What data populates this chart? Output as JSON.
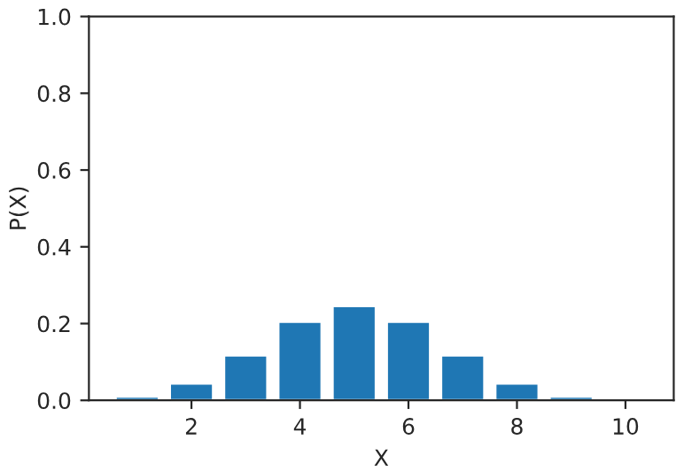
{
  "chart_data": {
    "type": "bar",
    "xlabel": "X",
    "ylabel": "P(X)",
    "x": [
      1,
      2,
      3,
      4,
      5,
      6,
      7,
      8,
      9
    ],
    "values": [
      0.01,
      0.044,
      0.117,
      0.205,
      0.246,
      0.205,
      0.117,
      0.044,
      0.01
    ],
    "color": "#1f77b4",
    "xlim": [
      0.11,
      10.89
    ],
    "xticks": [
      2,
      4,
      6,
      8,
      10
    ],
    "ylim": [
      0,
      1
    ],
    "yticks": [
      {
        "value": 0,
        "label": "0.0"
      },
      {
        "value": 0.2,
        "label": "0.2"
      },
      {
        "value": 0.4,
        "label": "0.4"
      },
      {
        "value": 0.6,
        "label": "0.6"
      },
      {
        "value": 0.8,
        "label": "0.8"
      },
      {
        "value": 1,
        "label": "1.0"
      }
    ],
    "grid": false
  }
}
